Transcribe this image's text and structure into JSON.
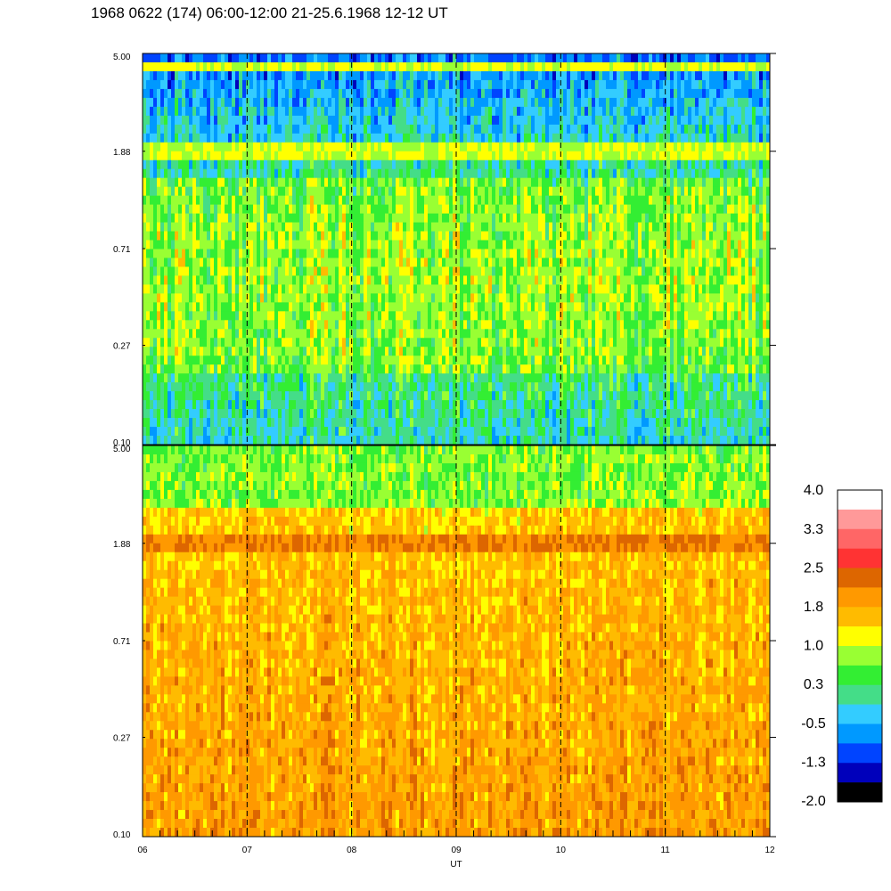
{
  "title": "1968 0622 (174) 06:00-12:00 21-25.6.1968  12-12 UT",
  "chart_data": {
    "type": "heatmap",
    "title": "1968 0622 (174) 06:00-12:00 21-25.6.1968  12-12 UT",
    "xlabel": "UT",
    "x_ticks": [
      "06",
      "07",
      "08",
      "09",
      "10",
      "11",
      "12"
    ],
    "x_range": [
      6,
      12
    ],
    "y_scale": "log",
    "y_ticks": [
      "0.10",
      "0.27",
      "0.71",
      "1.88",
      "5.00"
    ],
    "y_tick_values": [
      0.1,
      0.27,
      0.71,
      1.88,
      5.0
    ],
    "y_range": [
      0.1,
      5.0
    ],
    "vertical_dashed_lines_at": [
      7,
      8,
      9,
      10,
      11
    ],
    "panels": [
      {
        "name": "upper",
        "dominant_levels": [
          "0.3",
          "1.0"
        ],
        "band_freq": 1.88,
        "band_level": "1.0"
      },
      {
        "name": "lower",
        "dominant_levels": [
          "1.8",
          "2.5"
        ],
        "band_freq": 1.88,
        "band_level": "2.5"
      }
    ],
    "colorbar": {
      "labels": [
        "4.0",
        "3.3",
        "2.5",
        "1.8",
        "1.0",
        "0.3",
        "-0.5",
        "-1.3",
        "-2.0"
      ],
      "colors": [
        "#ffffff",
        "#ff9999",
        "#ff6666",
        "#ff3333",
        "#dd6600",
        "#ff9900",
        "#ffbb00",
        "#ffff00",
        "#99ff33",
        "#33ee33",
        "#44dd88",
        "#33ccff",
        "#0099ff",
        "#0044ff",
        "#0000bb",
        "#000000"
      ]
    }
  }
}
